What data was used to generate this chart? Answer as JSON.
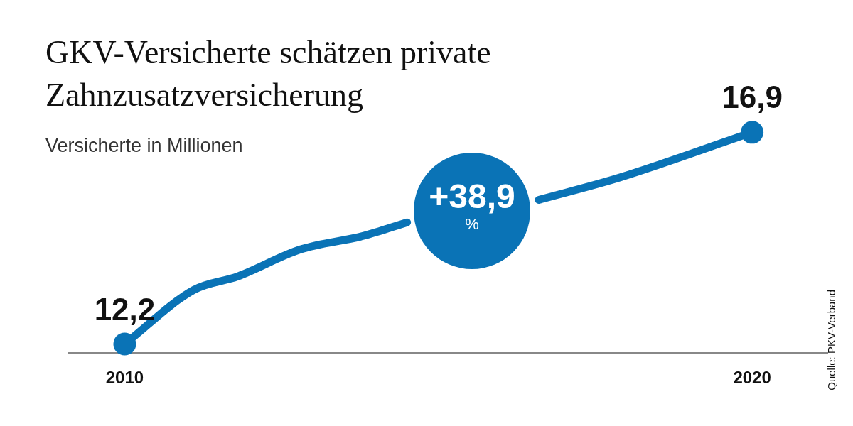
{
  "chart_data": {
    "type": "line",
    "title": "GKV-Versicherte schätzen private Zahnzusatzversicherung",
    "subtitle": "Versicherte in Millionen",
    "x": [
      2010,
      2011.1,
      2011.8,
      2012.8,
      2013.8,
      2014.5,
      2015.2,
      2016,
      2016.6,
      2017.9,
      2020
    ],
    "series": [
      {
        "color": "#0a73b6",
        "values": [
          12.2,
          13.4,
          13.7,
          14.3,
          14.6,
          14.9,
          null,
          null,
          15.4,
          15.9,
          16.9
        ],
        "value_labels": [
          "12,2",
          null,
          null,
          null,
          null,
          null,
          null,
          null,
          null,
          null,
          "16,9"
        ]
      }
    ],
    "xlim": [
      2009.1,
      2021.2
    ],
    "xticks": [
      2010,
      2020
    ],
    "tick_labels": "x",
    "grid": false,
    "legend": false,
    "annotations": [
      "+38,9 %",
      "Quelle: PKV-Verband"
    ]
  }
}
